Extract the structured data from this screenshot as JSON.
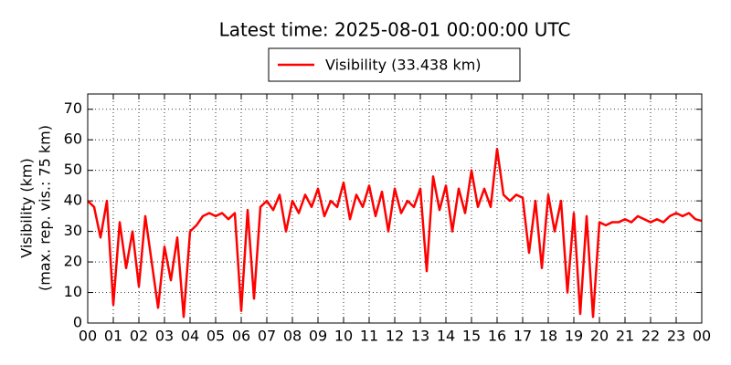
{
  "chart_data": {
    "type": "line",
    "title": "Latest time: 2025-08-01 00:00:00 UTC",
    "ylabel": "Visibility (km)",
    "ylabel2": "(max. rep. vis.: 75 km)",
    "x": [
      0,
      0.25,
      0.5,
      0.75,
      1,
      1.25,
      1.5,
      1.75,
      2,
      2.25,
      2.5,
      2.75,
      3,
      3.25,
      3.5,
      3.75,
      4,
      4.25,
      4.5,
      4.75,
      5,
      5.25,
      5.5,
      5.75,
      6,
      6.25,
      6.5,
      6.75,
      7,
      7.25,
      7.5,
      7.75,
      8,
      8.25,
      8.5,
      8.75,
      9,
      9.25,
      9.5,
      9.75,
      10,
      10.25,
      10.5,
      10.75,
      11,
      11.25,
      11.5,
      11.75,
      12,
      12.25,
      12.5,
      12.75,
      13,
      13.25,
      13.5,
      13.75,
      14,
      14.25,
      14.5,
      14.75,
      15,
      15.25,
      15.5,
      15.75,
      16,
      16.25,
      16.5,
      16.75,
      17,
      17.25,
      17.5,
      17.75,
      18,
      18.25,
      18.5,
      18.75,
      19,
      19.25,
      19.5,
      19.75,
      20,
      20.25,
      20.5,
      20.75,
      21,
      21.25,
      21.5,
      21.75,
      22,
      22.25,
      22.5,
      22.75,
      23,
      23.25,
      23.5,
      23.75,
      24
    ],
    "series": [
      {
        "name": "Visibility (33.438 km)",
        "color": "#ff0000",
        "values": [
          40,
          38,
          28,
          40,
          6,
          33,
          18,
          30,
          12,
          35,
          20,
          5,
          25,
          14,
          28,
          2,
          30,
          32,
          35,
          36,
          35,
          36,
          34,
          36,
          4,
          37,
          8,
          38,
          40,
          37,
          42,
          30,
          40,
          36,
          42,
          38,
          44,
          35,
          40,
          38,
          46,
          34,
          42,
          38,
          45,
          35,
          43,
          30,
          44,
          36,
          40,
          38,
          44,
          17,
          48,
          37,
          45,
          30,
          44,
          36,
          50,
          38,
          44,
          38,
          57,
          42,
          40,
          42,
          41,
          23,
          40,
          18,
          42,
          30,
          40,
          10,
          36,
          3,
          35,
          2,
          33,
          32,
          33,
          33,
          34,
          33,
          35,
          34,
          33,
          34,
          33,
          35,
          36,
          35,
          36,
          34,
          33.438
        ]
      }
    ],
    "xlim": [
      0,
      24
    ],
    "xticks": [
      {
        "value": 0,
        "label": "00"
      },
      {
        "value": 1,
        "label": "01"
      },
      {
        "value": 2,
        "label": "02"
      },
      {
        "value": 3,
        "label": "03"
      },
      {
        "value": 4,
        "label": "04"
      },
      {
        "value": 5,
        "label": "05"
      },
      {
        "value": 6,
        "label": "06"
      },
      {
        "value": 7,
        "label": "07"
      },
      {
        "value": 8,
        "label": "08"
      },
      {
        "value": 9,
        "label": "09"
      },
      10,
      11,
      12,
      13,
      14,
      15,
      16,
      17,
      18,
      19,
      20,
      21,
      22,
      23,
      {
        "value": 24,
        "label": "00"
      }
    ],
    "ylim": [
      0,
      75
    ],
    "yticks": [
      0,
      10,
      20,
      30,
      40,
      50,
      60,
      70
    ],
    "grid": true,
    "legend": "top"
  }
}
